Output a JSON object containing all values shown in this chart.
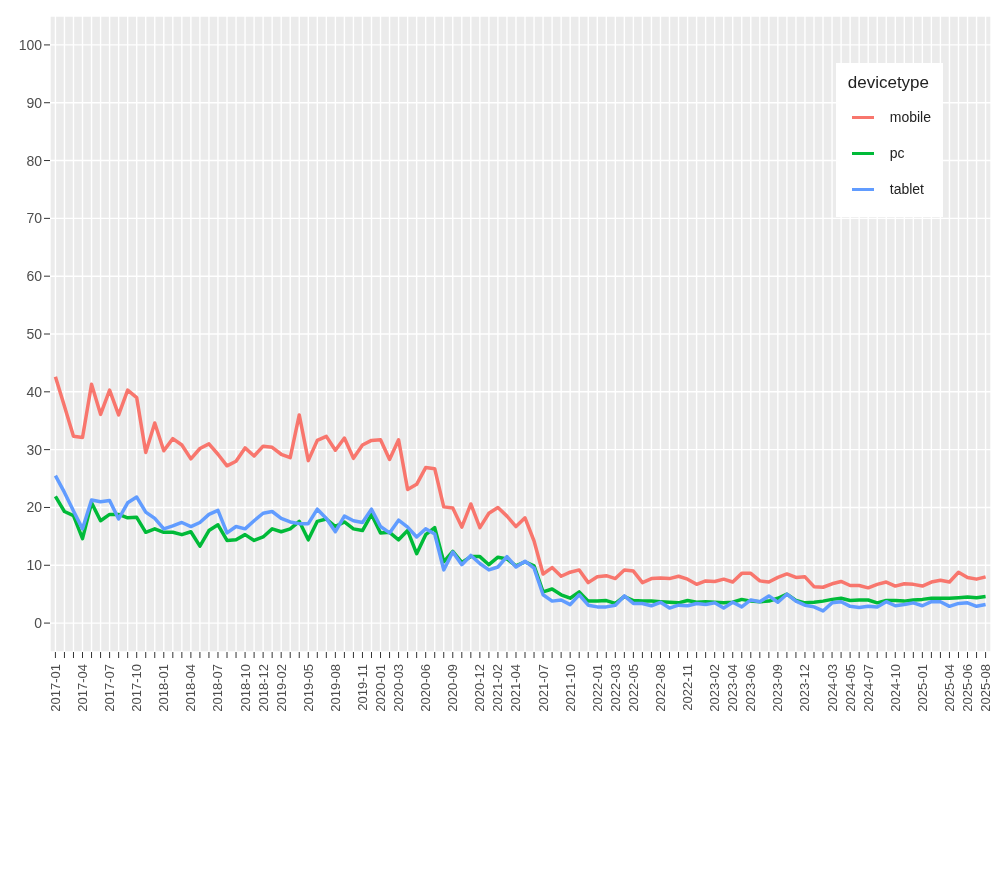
{
  "chart_data": {
    "type": "line",
    "legend_title": "devicetype",
    "categories": [
      "2017-01",
      null,
      null,
      "2017-04",
      null,
      null,
      "2017-07",
      null,
      null,
      "2017-10",
      null,
      null,
      "2018-01",
      null,
      null,
      "2018-04",
      null,
      null,
      "2018-07",
      null,
      null,
      "2018-10",
      null,
      "2018-12",
      null,
      "2019-02",
      null,
      null,
      "2019-05",
      null,
      null,
      "2019-08",
      null,
      null,
      "2019-11",
      null,
      "2020-01",
      null,
      "2020-03",
      null,
      null,
      "2020-06",
      null,
      null,
      "2020-09",
      null,
      null,
      "2020-12",
      null,
      "2021-02",
      null,
      "2021-04",
      null,
      null,
      "2021-07",
      null,
      null,
      "2021-10",
      null,
      null,
      "2022-01",
      null,
      "2022-03",
      null,
      "2022-05",
      null,
      null,
      "2022-08",
      null,
      null,
      "2022-11",
      null,
      null,
      "2023-02",
      null,
      "2023-04",
      null,
      "2023-06",
      null,
      null,
      "2023-09",
      null,
      null,
      "2023-12",
      null,
      null,
      "2024-03",
      null,
      "2024-05",
      null,
      "2024-07",
      null,
      null,
      "2024-10",
      null,
      null,
      "2025-01",
      null,
      null,
      "2025-04",
      null,
      "2025-06",
      null,
      "2025-08"
    ],
    "series": [
      {
        "name": "mobile",
        "color": "#f8766d",
        "values": [
          42.6,
          37.5,
          32.3,
          32.1,
          41.3,
          36.1,
          40.3,
          36.0,
          40.3,
          39.0,
          29.5,
          34.6,
          29.8,
          31.9,
          30.8,
          28.4,
          30.2,
          31.0,
          29.2,
          27.2,
          28.0,
          30.3,
          28.9,
          30.6,
          30.4,
          29.2,
          28.6,
          36.0,
          28.1,
          31.6,
          32.3,
          29.9,
          32.0,
          28.5,
          30.8,
          31.6,
          31.7,
          28.3,
          31.7,
          23.1,
          24.0,
          26.9,
          26.7,
          20.1,
          19.9,
          16.6,
          20.6,
          16.5,
          19.0,
          20.0,
          18.5,
          16.7,
          18.2,
          14.2,
          8.5,
          9.6,
          8.1,
          8.8,
          9.2,
          7.0,
          8.0,
          8.2,
          7.7,
          9.2,
          9.0,
          7.0,
          7.7,
          7.8,
          7.7,
          8.1,
          7.6,
          6.7,
          7.3,
          7.2,
          7.6,
          7.1,
          8.6,
          8.6,
          7.3,
          7.1,
          7.9,
          8.5,
          7.9,
          8.0,
          6.3,
          6.2,
          6.8,
          7.2,
          6.5,
          6.5,
          6.1,
          6.7,
          7.1,
          6.4,
          6.8,
          6.7,
          6.4,
          7.1,
          7.4,
          7.1,
          8.8,
          7.9,
          7.6,
          8.0
        ]
      },
      {
        "name": "pc",
        "color": "#00ba38",
        "values": [
          21.9,
          19.3,
          18.6,
          14.6,
          20.8,
          17.7,
          18.8,
          18.8,
          18.2,
          18.3,
          15.7,
          16.3,
          15.7,
          15.7,
          15.3,
          15.8,
          13.3,
          16.0,
          17.0,
          14.3,
          14.4,
          15.3,
          14.3,
          14.9,
          16.3,
          15.8,
          16.3,
          17.6,
          14.4,
          17.6,
          18.0,
          16.7,
          17.5,
          16.3,
          16.0,
          18.8,
          15.6,
          15.7,
          14.4,
          16.0,
          12.0,
          15.3,
          16.5,
          10.6,
          12.4,
          10.5,
          11.5,
          11.5,
          10.1,
          11.4,
          11.1,
          9.9,
          10.6,
          9.9,
          5.4,
          5.9,
          4.9,
          4.3,
          5.4,
          3.8,
          3.8,
          3.9,
          3.4,
          4.6,
          3.9,
          3.8,
          3.8,
          3.7,
          3.6,
          3.5,
          3.9,
          3.6,
          3.7,
          3.6,
          3.5,
          3.6,
          4.1,
          3.8,
          3.7,
          3.8,
          4.3,
          5.0,
          3.9,
          3.5,
          3.6,
          3.8,
          4.1,
          4.3,
          3.9,
          4.0,
          4.0,
          3.5,
          3.9,
          3.9,
          3.8,
          4.0,
          4.1,
          4.3,
          4.3,
          4.3,
          4.4,
          4.5,
          4.4,
          4.6
        ]
      },
      {
        "name": "tablet",
        "color": "#619cff",
        "values": [
          25.5,
          22.6,
          19.4,
          16.3,
          21.3,
          21.0,
          21.2,
          18.0,
          20.8,
          21.8,
          19.2,
          18.1,
          16.3,
          16.8,
          17.4,
          16.7,
          17.4,
          18.8,
          19.5,
          15.6,
          16.7,
          16.3,
          17.7,
          19.0,
          19.3,
          18.1,
          17.5,
          17.2,
          17.2,
          19.7,
          18.1,
          15.8,
          18.5,
          17.7,
          17.4,
          19.7,
          16.7,
          15.6,
          17.8,
          16.6,
          14.9,
          16.3,
          15.4,
          9.2,
          12.3,
          10.1,
          11.7,
          10.3,
          9.2,
          9.7,
          11.5,
          9.7,
          10.7,
          9.5,
          4.9,
          3.8,
          4.0,
          3.2,
          4.9,
          3.1,
          2.8,
          2.8,
          3.1,
          4.7,
          3.4,
          3.4,
          3.0,
          3.6,
          2.6,
          3.1,
          3.0,
          3.4,
          3.2,
          3.5,
          2.6,
          3.6,
          2.8,
          4.0,
          3.7,
          4.7,
          3.6,
          5.0,
          3.8,
          3.1,
          2.8,
          2.1,
          3.5,
          3.7,
          2.9,
          2.7,
          2.9,
          2.8,
          3.7,
          3.0,
          3.2,
          3.5,
          3.0,
          3.7,
          3.7,
          2.9,
          3.4,
          3.5,
          2.9,
          3.2
        ]
      }
    ],
    "ylim": [
      -5,
      105
    ],
    "yticks": [
      0,
      10,
      20,
      30,
      40,
      50,
      60,
      70,
      80,
      90,
      100
    ],
    "grid": true,
    "legend": "top right"
  }
}
